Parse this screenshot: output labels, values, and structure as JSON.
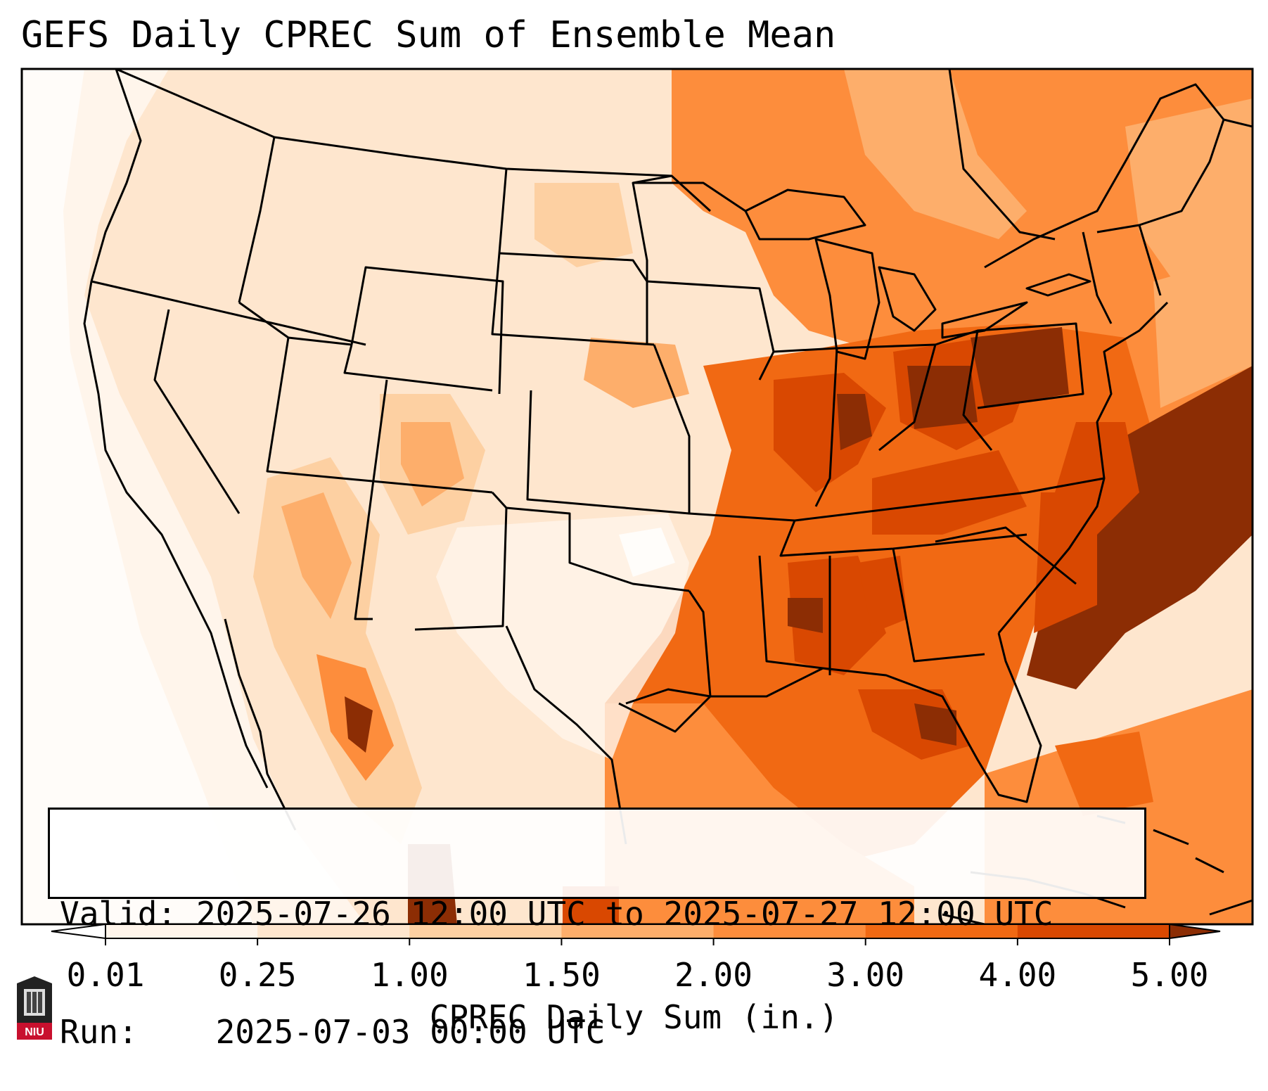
{
  "title": "GEFS Daily CPREC Sum of Ensemble Mean",
  "info": {
    "valid_label": "Valid:",
    "valid_value": "2025-07-26 12:00 UTC to 2025-07-27 12:00 UTC",
    "run_label": "Run:",
    "run_value": "2025-07-03 00:00 UTC"
  },
  "colorbar": {
    "label": "CPREC Daily Sum (in.)",
    "ticks": [
      "0.01",
      "0.25",
      "1.00",
      "1.50",
      "2.00",
      "3.00",
      "4.00",
      "5.00"
    ],
    "colors": [
      "#fff5eb",
      "#fee6ce",
      "#fdd0a2",
      "#fdae6b",
      "#fd8d3c",
      "#f16913",
      "#d94801",
      "#8c2d04"
    ],
    "extend": "both"
  },
  "logo": {
    "text": "NIU",
    "color": "#c8102e"
  }
}
